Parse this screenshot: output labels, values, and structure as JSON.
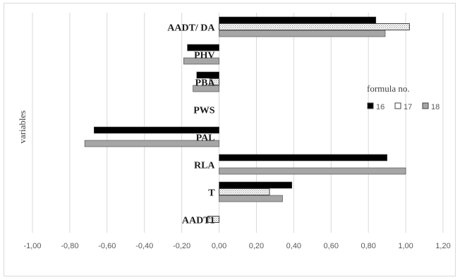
{
  "chart_data": {
    "type": "bar",
    "orientation": "horizontal",
    "title": "",
    "xlabel": "",
    "ylabel": "variables",
    "xlim": [
      -1.0,
      1.2
    ],
    "xticks": [
      "-1,00",
      "-0,80",
      "-0,60",
      "-0,40",
      "-0,20",
      "0,00",
      "0,20",
      "0,40",
      "0,60",
      "0,80",
      "1,00",
      "1,20"
    ],
    "xtick_values": [
      -1.0,
      -0.8,
      -0.6,
      -0.4,
      -0.2,
      0.0,
      0.2,
      0.4,
      0.6,
      0.8,
      1.0,
      1.2
    ],
    "categories": [
      "AADT/ DA",
      "PHV",
      "PBA",
      "PWS",
      "PAL",
      "RLA",
      "T",
      "AADT1"
    ],
    "legend": {
      "title": "formula no.",
      "position": "right"
    },
    "series": [
      {
        "name": "16",
        "fill": "#000000",
        "pattern": "solid",
        "values": [
          0.84,
          -0.17,
          -0.12,
          0.0,
          -0.67,
          0.9,
          0.39,
          0.0
        ]
      },
      {
        "name": "17",
        "fill": "#ffffff",
        "pattern": "dotted",
        "values": [
          1.02,
          0.0,
          -0.05,
          0.0,
          0.0,
          0.0,
          0.27,
          -0.06
        ]
      },
      {
        "name": "18",
        "fill": "#a6a6a6",
        "pattern": "solid",
        "values": [
          0.89,
          -0.19,
          -0.14,
          0.0,
          -0.72,
          1.0,
          0.34,
          0.0
        ]
      }
    ],
    "grid": true
  }
}
